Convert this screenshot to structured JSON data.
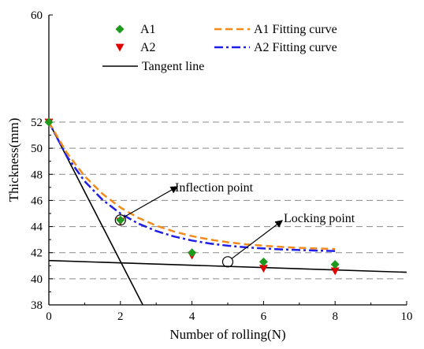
{
  "chart_data": {
    "type": "scatter",
    "xlabel": "Number of rolling(N)",
    "ylabel": "Thickness(mm)",
    "xlim": [
      0,
      10
    ],
    "ylim": [
      38,
      60
    ],
    "xticks": [
      "0",
      "2",
      "4",
      "6",
      "8",
      "10"
    ],
    "yticks": [
      "38",
      "40",
      "42",
      "44",
      "46",
      "48",
      "50",
      "52",
      "60"
    ],
    "grid": "dashed horizontal lines at y = 40..52",
    "legend_position": "top",
    "series": [
      {
        "name": "A1",
        "marker": "diamond",
        "color": "#1e9a1e",
        "x": [
          0,
          2,
          4,
          6,
          8
        ],
        "y": [
          52.0,
          44.5,
          42.0,
          41.3,
          41.1
        ]
      },
      {
        "name": "A2",
        "marker": "triangle-down",
        "color": "#e00000",
        "x": [
          0,
          2,
          4,
          6,
          8
        ],
        "y": [
          52.0,
          44.4,
          41.8,
          40.8,
          40.6
        ]
      },
      {
        "name": "A1 Fitting curve",
        "style": "dashed",
        "color": "#f28a1e",
        "x": [
          0,
          0.5,
          1,
          1.5,
          2,
          2.5,
          3,
          3.5,
          4,
          4.5,
          5,
          5.5,
          6,
          6.5,
          7,
          7.5,
          8
        ],
        "y": [
          52.0,
          49.65,
          47.86,
          46.5,
          45.46,
          44.67,
          44.07,
          43.62,
          43.27,
          43.0,
          42.8,
          42.64,
          42.53,
          42.44,
          42.37,
          42.32,
          42.28
        ]
      },
      {
        "name": "A2 Fitting curve",
        "style": "dash-dot",
        "color": "#1e1ee6",
        "x": [
          0,
          0.5,
          1,
          1.5,
          2,
          2.5,
          3,
          3.5,
          4,
          4.5,
          5,
          5.5,
          6,
          6.5,
          7,
          7.5,
          8
        ],
        "y": [
          52.0,
          49.39,
          47.47,
          46.05,
          45.0,
          44.23,
          43.66,
          43.24,
          42.93,
          42.7,
          42.53,
          42.41,
          42.32,
          42.25,
          42.2,
          42.16,
          42.13
        ]
      },
      {
        "name": "Tangent line",
        "style": "solid",
        "color": "#000000",
        "segments": [
          {
            "x": [
              0,
              2.7
            ],
            "y": [
              52.0,
              37.6
            ]
          },
          {
            "x": [
              0,
              10
            ],
            "y": [
              41.4,
              40.5
            ]
          }
        ]
      }
    ],
    "annotations": [
      {
        "text": "Inflection point",
        "x": 2.0,
        "y": 44.5
      },
      {
        "text": "Locking point",
        "x": 5.0,
        "y": 41.3
      }
    ]
  }
}
